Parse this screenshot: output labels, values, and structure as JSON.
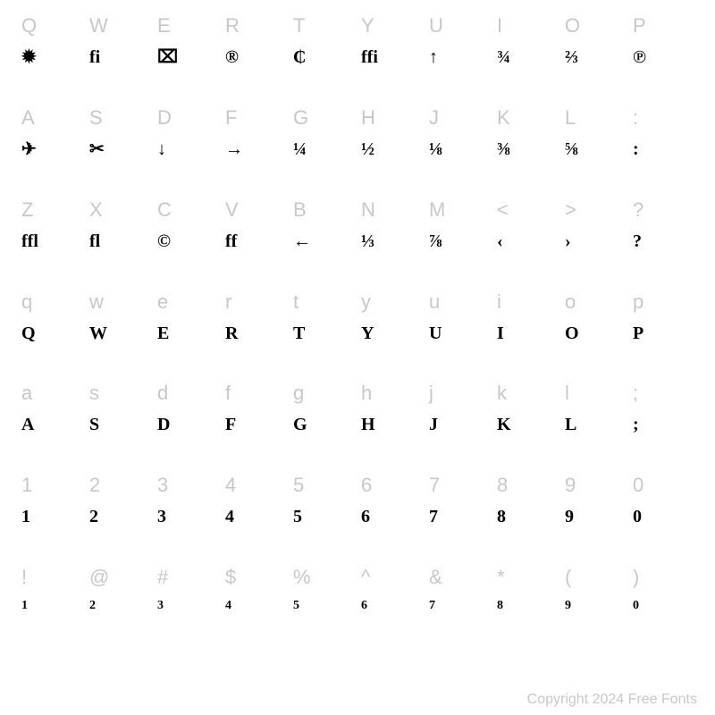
{
  "chart": {
    "type": "glyph-map-table",
    "columns": 10,
    "rows": 7,
    "background_color": "#ffffff",
    "key_label_color": "#c8c8c8",
    "key_label_fontsize": 22,
    "glyph_color": "#000000",
    "glyph_fontsize": 20,
    "glyph_fontweight": 700,
    "cells": [
      {
        "key": "Q",
        "glyph": "✹"
      },
      {
        "key": "W",
        "glyph": "fi"
      },
      {
        "key": "E",
        "glyph": "⌧"
      },
      {
        "key": "R",
        "glyph": "®"
      },
      {
        "key": "T",
        "glyph": "₵"
      },
      {
        "key": "Y",
        "glyph": "ffi"
      },
      {
        "key": "U",
        "glyph": "↑"
      },
      {
        "key": "I",
        "glyph": "¾"
      },
      {
        "key": "O",
        "glyph": "⅔"
      },
      {
        "key": "P",
        "glyph": "℗"
      },
      {
        "key": "A",
        "glyph": "✈"
      },
      {
        "key": "S",
        "glyph": "✂"
      },
      {
        "key": "D",
        "glyph": "↓"
      },
      {
        "key": "F",
        "glyph": "→"
      },
      {
        "key": "G",
        "glyph": "¼"
      },
      {
        "key": "H",
        "glyph": "½"
      },
      {
        "key": "J",
        "glyph": "⅛"
      },
      {
        "key": "K",
        "glyph": "⅜"
      },
      {
        "key": "L",
        "glyph": "⅝"
      },
      {
        "key": ":",
        "glyph": ":"
      },
      {
        "key": "Z",
        "glyph": "ffl"
      },
      {
        "key": "X",
        "glyph": "fl"
      },
      {
        "key": "C",
        "glyph": "©"
      },
      {
        "key": "V",
        "glyph": "ff"
      },
      {
        "key": "B",
        "glyph": "←"
      },
      {
        "key": "N",
        "glyph": "⅓"
      },
      {
        "key": "M",
        "glyph": "⅞"
      },
      {
        "key": "<",
        "glyph": "‹"
      },
      {
        "key": ">",
        "glyph": "›"
      },
      {
        "key": "?",
        "glyph": "?"
      },
      {
        "key": "q",
        "glyph": "Q"
      },
      {
        "key": "w",
        "glyph": "W"
      },
      {
        "key": "e",
        "glyph": "E"
      },
      {
        "key": "r",
        "glyph": "R"
      },
      {
        "key": "t",
        "glyph": "T"
      },
      {
        "key": "y",
        "glyph": "Y"
      },
      {
        "key": "u",
        "glyph": "U"
      },
      {
        "key": "i",
        "glyph": "I"
      },
      {
        "key": "o",
        "glyph": "O"
      },
      {
        "key": "p",
        "glyph": "P"
      },
      {
        "key": "a",
        "glyph": "A"
      },
      {
        "key": "s",
        "glyph": "S"
      },
      {
        "key": "d",
        "glyph": "D"
      },
      {
        "key": "f",
        "glyph": "F"
      },
      {
        "key": "g",
        "glyph": "G"
      },
      {
        "key": "h",
        "glyph": "H"
      },
      {
        "key": "j",
        "glyph": "J"
      },
      {
        "key": "k",
        "glyph": "K"
      },
      {
        "key": "l",
        "glyph": "L"
      },
      {
        "key": ";",
        "glyph": ";"
      },
      {
        "key": "1",
        "glyph": "1"
      },
      {
        "key": "2",
        "glyph": "2"
      },
      {
        "key": "3",
        "glyph": "3"
      },
      {
        "key": "4",
        "glyph": "4"
      },
      {
        "key": "5",
        "glyph": "5"
      },
      {
        "key": "6",
        "glyph": "6"
      },
      {
        "key": "7",
        "glyph": "7"
      },
      {
        "key": "8",
        "glyph": "8"
      },
      {
        "key": "9",
        "glyph": "9"
      },
      {
        "key": "0",
        "glyph": "0"
      },
      {
        "key": "!",
        "glyph": "1",
        "small": true
      },
      {
        "key": "@",
        "glyph": "2",
        "small": true
      },
      {
        "key": "#",
        "glyph": "3",
        "small": true
      },
      {
        "key": "$",
        "glyph": "4",
        "small": true
      },
      {
        "key": "%",
        "glyph": "5",
        "small": true
      },
      {
        "key": "^",
        "glyph": "6",
        "small": true
      },
      {
        "key": "&",
        "glyph": "7",
        "small": true
      },
      {
        "key": "*",
        "glyph": "8",
        "small": true
      },
      {
        "key": "(",
        "glyph": "9",
        "small": true
      },
      {
        "key": ")",
        "glyph": "0",
        "small": true
      }
    ]
  },
  "copyright": "Copyright 2024 Free Fonts"
}
